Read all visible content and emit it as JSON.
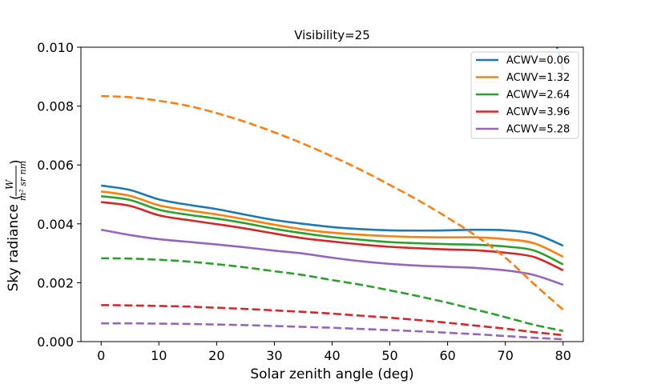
{
  "chart_data": {
    "type": "line",
    "title": "Visibility=25",
    "xlabel": "Solar zenith angle (deg)",
    "ylabel": "Sky radiance",
    "ylabel_units": {
      "num": "W",
      "den": "m² sr nm"
    },
    "xlim": [
      -3.5,
      83.5
    ],
    "ylim": [
      0.0,
      0.01
    ],
    "x_ticks": [
      0,
      10,
      20,
      30,
      40,
      50,
      60,
      70,
      80
    ],
    "y_ticks": [
      0.0,
      0.002,
      0.004,
      0.006,
      0.008,
      0.01
    ],
    "y_tick_labels": [
      "0.000",
      "0.002",
      "0.004",
      "0.006",
      "0.008",
      "0.010"
    ],
    "legend_position": "top-right",
    "x": [
      0,
      5,
      10,
      15,
      20,
      25,
      30,
      35,
      40,
      45,
      50,
      55,
      60,
      65,
      70,
      75,
      80
    ],
    "series": [
      {
        "name": "ACWV=0.06",
        "color": "#1f77b4",
        "dash": "solid",
        "values": [
          0.0053,
          0.00515,
          0.00483,
          0.00465,
          0.0045,
          0.00431,
          0.00413,
          0.004,
          0.00389,
          0.00382,
          0.00378,
          0.00377,
          0.00378,
          0.0038,
          0.00378,
          0.00366,
          0.00326
        ]
      },
      {
        "name": "ACWV=1.32",
        "color": "#ff7f0e",
        "dash": "solid",
        "values": [
          0.0051,
          0.00495,
          0.00463,
          0.00446,
          0.00432,
          0.00415,
          0.00397,
          0.00381,
          0.0037,
          0.00363,
          0.00358,
          0.00355,
          0.00354,
          0.00354,
          0.00348,
          0.00334,
          0.00288
        ]
      },
      {
        "name": "ACWV=2.64",
        "color": "#2ca02c",
        "dash": "solid",
        "values": [
          0.00494,
          0.00481,
          0.00448,
          0.00431,
          0.00418,
          0.00402,
          0.00383,
          0.00368,
          0.00355,
          0.00346,
          0.00338,
          0.00334,
          0.00331,
          0.00329,
          0.00323,
          0.00309,
          0.00262
        ]
      },
      {
        "name": "ACWV=3.96",
        "color": "#d62728",
        "dash": "solid",
        "values": [
          0.00474,
          0.00461,
          0.00429,
          0.00413,
          0.00399,
          0.00384,
          0.00367,
          0.00351,
          0.0034,
          0.0033,
          0.00322,
          0.00317,
          0.00313,
          0.0031,
          0.00302,
          0.00287,
          0.00242
        ]
      },
      {
        "name": "ACWV=5.28",
        "color": "#9467bd",
        "dash": "solid",
        "values": [
          0.0038,
          0.00362,
          0.00348,
          0.00339,
          0.0033,
          0.0032,
          0.00309,
          0.00299,
          0.00285,
          0.00273,
          0.00264,
          0.00258,
          0.00254,
          0.0025,
          0.00242,
          0.00226,
          0.00193
        ]
      },
      {
        "name": "",
        "color": "#ff7f0e",
        "dash": "dashed",
        "values": [
          0.00834,
          0.0083,
          0.00818,
          0.00801,
          0.00776,
          0.00746,
          0.00711,
          0.00672,
          0.00629,
          0.00583,
          0.00532,
          0.00479,
          0.00421,
          0.00358,
          0.00285,
          0.00195,
          0.00108
        ]
      },
      {
        "name": "",
        "color": "#2ca02c",
        "dash": "dashed",
        "values": [
          0.00283,
          0.00282,
          0.00278,
          0.00272,
          0.00263,
          0.00252,
          0.00239,
          0.00226,
          0.00209,
          0.00193,
          0.00174,
          0.00154,
          0.00132,
          0.00108,
          0.00083,
          0.00057,
          0.00036
        ]
      },
      {
        "name": "",
        "color": "#d62728",
        "dash": "dashed",
        "values": [
          0.00124,
          0.00123,
          0.00121,
          0.00119,
          0.00115,
          0.00111,
          0.00106,
          0.00101,
          0.00095,
          0.00088,
          0.00081,
          0.00073,
          0.00064,
          0.00054,
          0.00044,
          0.00032,
          0.00022
        ]
      },
      {
        "name": "",
        "color": "#9467bd",
        "dash": "dashed",
        "values": [
          0.00062,
          0.00062,
          0.00061,
          0.0006,
          0.00058,
          0.00056,
          0.00053,
          0.0005,
          0.00047,
          0.00043,
          0.00039,
          0.00035,
          0.0003,
          0.00025,
          0.00019,
          0.00013,
          8e-05
        ]
      },
      {
        "name": "",
        "color": "#1f77b4",
        "dash": "dashed",
        "x": [
          78.5,
          79.0,
          79.5,
          80.0
        ],
        "values": [
          0.0102,
          0.00996,
          0.0096,
          0.0092
        ]
      }
    ]
  }
}
